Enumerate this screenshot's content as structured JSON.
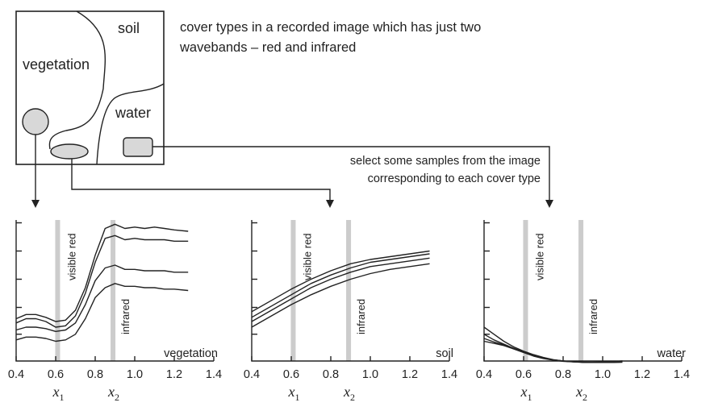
{
  "map": {
    "regions": [
      {
        "id": "soil",
        "label": "soil"
      },
      {
        "id": "vegetation",
        "label": "vegetation"
      },
      {
        "id": "water",
        "label": "water"
      }
    ]
  },
  "description": "cover types in a recorded image which has just two wavebands – red and infrared",
  "description_lines": [
    "cover types in a recorded image which has just two",
    "wavebands – red and infrared"
  ],
  "instruction_lines": [
    "select some samples from the image",
    "corresponding to each cover type"
  ],
  "chart_data": [
    {
      "type": "line",
      "title": "vegetation",
      "xlim": [
        0.4,
        1.4
      ],
      "xticks": [
        "0.4",
        "0.6",
        "0.8",
        "1.0",
        "1.2",
        "1.4"
      ],
      "bands": [
        {
          "label": "visible red",
          "x": 0.61,
          "marker": "x1"
        },
        {
          "label": "infrared",
          "x": 0.89,
          "marker": "x2"
        }
      ],
      "series": [
        {
          "x": [
            0.4,
            0.45,
            0.5,
            0.55,
            0.6,
            0.65,
            0.7,
            0.75,
            0.8,
            0.85,
            0.9,
            0.95,
            1.0,
            1.05,
            1.1,
            1.15,
            1.2,
            1.27
          ],
          "y": [
            0.3,
            0.33,
            0.33,
            0.31,
            0.28,
            0.29,
            0.36,
            0.52,
            0.75,
            0.94,
            0.97,
            0.94,
            0.95,
            0.94,
            0.95,
            0.94,
            0.93,
            0.92
          ]
        },
        {
          "x": [
            0.4,
            0.45,
            0.5,
            0.55,
            0.6,
            0.65,
            0.7,
            0.75,
            0.8,
            0.85,
            0.9,
            0.95,
            1.0,
            1.05,
            1.1,
            1.15,
            1.2,
            1.27
          ],
          "y": [
            0.27,
            0.3,
            0.3,
            0.28,
            0.24,
            0.25,
            0.32,
            0.48,
            0.7,
            0.87,
            0.89,
            0.86,
            0.87,
            0.86,
            0.86,
            0.86,
            0.85,
            0.85
          ]
        },
        {
          "x": [
            0.4,
            0.45,
            0.5,
            0.55,
            0.6,
            0.65,
            0.7,
            0.75,
            0.8,
            0.85,
            0.9,
            0.95,
            1.0,
            1.05,
            1.1,
            1.15,
            1.2,
            1.27
          ],
          "y": [
            0.22,
            0.24,
            0.24,
            0.23,
            0.21,
            0.22,
            0.27,
            0.4,
            0.57,
            0.66,
            0.68,
            0.65,
            0.65,
            0.64,
            0.64,
            0.64,
            0.63,
            0.63
          ]
        },
        {
          "x": [
            0.4,
            0.45,
            0.5,
            0.55,
            0.6,
            0.65,
            0.7,
            0.75,
            0.8,
            0.85,
            0.9,
            0.95,
            1.0,
            1.05,
            1.1,
            1.15,
            1.2,
            1.27
          ],
          "y": [
            0.15,
            0.17,
            0.17,
            0.16,
            0.14,
            0.15,
            0.19,
            0.3,
            0.45,
            0.52,
            0.55,
            0.53,
            0.53,
            0.52,
            0.52,
            0.51,
            0.51,
            0.5
          ]
        }
      ]
    },
    {
      "type": "line",
      "title": "soil",
      "xlim": [
        0.4,
        1.4
      ],
      "xticks": [
        "0.4",
        "0.6",
        "0.8",
        "1.0",
        "1.2",
        "1.4"
      ],
      "bands": [
        {
          "label": "visible red",
          "x": 0.61,
          "marker": "x1"
        },
        {
          "label": "infrared",
          "x": 0.89,
          "marker": "x2"
        }
      ],
      "series": [
        {
          "x": [
            0.4,
            0.5,
            0.6,
            0.7,
            0.8,
            0.9,
            1.0,
            1.1,
            1.2,
            1.3
          ],
          "y": [
            0.35,
            0.43,
            0.51,
            0.58,
            0.64,
            0.69,
            0.72,
            0.74,
            0.76,
            0.78
          ]
        },
        {
          "x": [
            0.4,
            0.5,
            0.6,
            0.7,
            0.8,
            0.9,
            1.0,
            1.1,
            1.2,
            1.3
          ],
          "y": [
            0.31,
            0.39,
            0.47,
            0.55,
            0.61,
            0.66,
            0.7,
            0.72,
            0.74,
            0.76
          ]
        },
        {
          "x": [
            0.4,
            0.5,
            0.6,
            0.7,
            0.8,
            0.9,
            1.0,
            1.1,
            1.2,
            1.3
          ],
          "y": [
            0.28,
            0.36,
            0.44,
            0.52,
            0.58,
            0.63,
            0.67,
            0.69,
            0.71,
            0.73
          ]
        },
        {
          "x": [
            0.4,
            0.5,
            0.6,
            0.7,
            0.8,
            0.9,
            1.0,
            1.1,
            1.2,
            1.3
          ],
          "y": [
            0.24,
            0.32,
            0.4,
            0.47,
            0.53,
            0.58,
            0.62,
            0.65,
            0.67,
            0.69
          ]
        }
      ]
    },
    {
      "type": "line",
      "title": "water",
      "xlim": [
        0.4,
        1.4
      ],
      "xticks": [
        "0.4",
        "0.6",
        "0.8",
        "1.0",
        "1.2",
        "1.4"
      ],
      "bands": [
        {
          "label": "visible red",
          "x": 0.61,
          "marker": "x1"
        },
        {
          "label": "infrared",
          "x": 0.89,
          "marker": "x2"
        }
      ],
      "series": [
        {
          "x": [
            0.4,
            0.45,
            0.5,
            0.55,
            0.6,
            0.65,
            0.7,
            0.75,
            0.8,
            0.85,
            0.9,
            0.95,
            1.0,
            1.05,
            1.1
          ],
          "y": [
            0.24,
            0.19,
            0.14,
            0.1,
            0.07,
            0.045,
            0.025,
            0.01,
            0.0,
            -0.005,
            -0.01,
            -0.01,
            -0.01,
            -0.01,
            -0.008
          ]
        },
        {
          "x": [
            0.4,
            0.45,
            0.5,
            0.55,
            0.6,
            0.65,
            0.7,
            0.75,
            0.8,
            0.85,
            0.9,
            0.95,
            1.0,
            1.05,
            1.1
          ],
          "y": [
            0.19,
            0.15,
            0.12,
            0.09,
            0.065,
            0.04,
            0.02,
            0.008,
            0.0,
            -0.005,
            -0.008,
            -0.008,
            -0.008,
            -0.005,
            0.0
          ]
        },
        {
          "x": [
            0.4,
            0.45,
            0.5,
            0.55,
            0.6,
            0.65,
            0.7,
            0.75,
            0.8,
            0.85,
            0.9,
            0.95,
            1.0,
            1.05,
            1.1
          ],
          "y": [
            0.16,
            0.135,
            0.115,
            0.09,
            0.065,
            0.04,
            0.02,
            0.008,
            0.0,
            -0.005,
            -0.008,
            -0.01,
            -0.01,
            -0.01,
            -0.008
          ]
        },
        {
          "x": [
            0.4,
            0.45,
            0.5,
            0.55,
            0.6,
            0.65,
            0.7,
            0.75,
            0.8,
            0.85,
            0.9,
            0.95,
            1.0,
            1.05,
            1.1
          ],
          "y": [
            0.14,
            0.125,
            0.11,
            0.085,
            0.06,
            0.035,
            0.018,
            0.006,
            -0.002,
            -0.006,
            -0.008,
            -0.008,
            -0.006,
            -0.003,
            0.0
          ]
        }
      ]
    }
  ]
}
